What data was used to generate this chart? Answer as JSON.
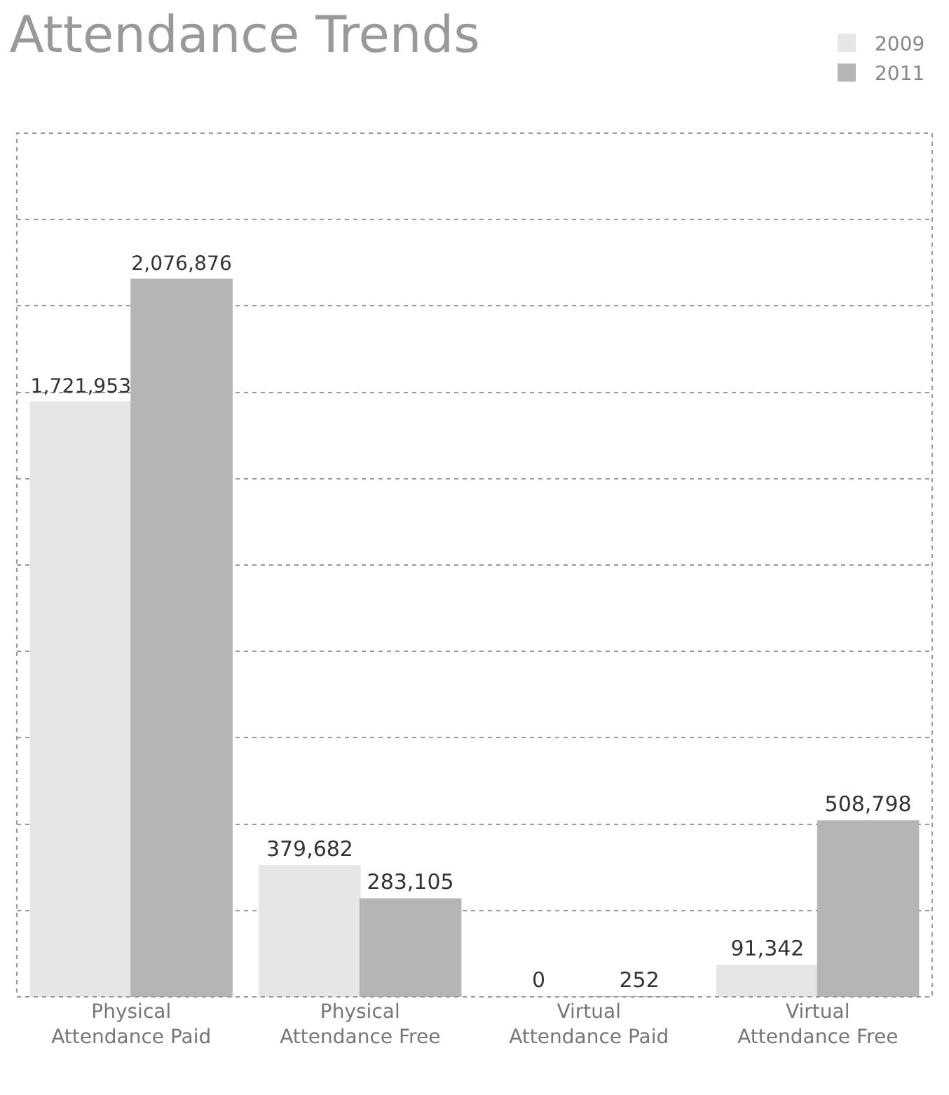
{
  "chart_data": {
    "type": "bar",
    "title": "Attendance Trends",
    "categories": [
      "Physical Attendance Paid",
      "Physical Attendance Free",
      "Virtual Attendance Paid",
      "Virtual Attendance Free"
    ],
    "series": [
      {
        "name": "2009",
        "color": "#e6e6e6",
        "values": [
          1721953,
          379682,
          0,
          91342
        ],
        "value_labels": [
          "1,721,953",
          "379,682",
          "0",
          "91,342"
        ]
      },
      {
        "name": "2011",
        "color": "#b5b5b5",
        "values": [
          2076876,
          283105,
          252,
          508798
        ],
        "value_labels": [
          "2,076,876",
          "283,105",
          "252",
          "508,798"
        ]
      }
    ],
    "ylim": [
      0,
      2500000
    ],
    "yticks": [
      {
        "value": 0,
        "label": null
      },
      {
        "value": 250000,
        "label": null
      },
      {
        "value": 500000,
        "label": null
      },
      {
        "value": 750000,
        "label": null
      },
      {
        "value": 1000000,
        "label": null
      },
      {
        "value": 1250000,
        "label": null
      },
      {
        "value": 1500000,
        "label": null
      },
      {
        "value": 1750000,
        "label": null
      },
      {
        "value": 2000000,
        "label": null
      },
      {
        "value": 2250000,
        "label": null
      },
      {
        "value": 2500000,
        "label": null
      }
    ],
    "grid": "y",
    "legend": "top right",
    "tick_labels": "x"
  }
}
